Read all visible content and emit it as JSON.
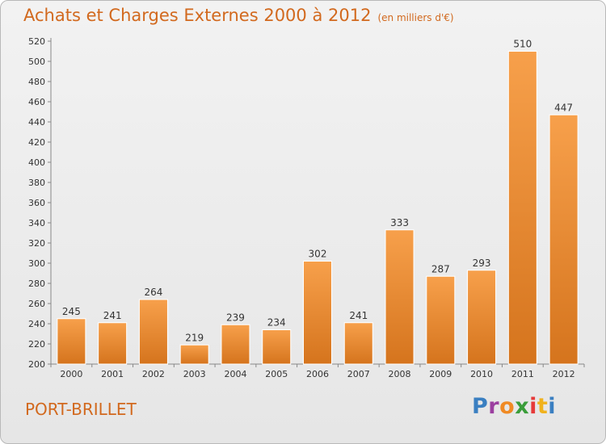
{
  "header": {
    "title": "Achats et Charges Externes 2000 à 2012",
    "unit": "(en milliers d'€)"
  },
  "footer": {
    "city": "PORT-BRILLET",
    "logo": [
      "P",
      "r",
      "o",
      "x",
      "i",
      "t",
      "i"
    ]
  },
  "logo_colors": [
    "#3a7fc1",
    "#9b3fa0",
    "#f08a24",
    "#3a9d3a",
    "#e63a3a",
    "#f0b21e",
    "#3a7fc1"
  ],
  "colors": {
    "bar_light": "#f7a04b",
    "bar_dark": "#d5741d",
    "title": "#d2691e"
  },
  "chart_data": {
    "type": "bar",
    "title": "Achats et Charges Externes 2000 à 2012",
    "subtitle": "(en milliers d'€)",
    "categories": [
      "2000",
      "2001",
      "2002",
      "2003",
      "2004",
      "2005",
      "2006",
      "2007",
      "2008",
      "2009",
      "2010",
      "2011",
      "2012"
    ],
    "values": [
      245,
      241,
      264,
      219,
      239,
      234,
      302,
      241,
      333,
      287,
      293,
      510,
      447
    ],
    "ylim": [
      200,
      520
    ],
    "yticks": [
      200,
      220,
      240,
      260,
      280,
      300,
      320,
      340,
      360,
      380,
      400,
      420,
      440,
      460,
      480,
      500,
      520
    ],
    "grid": false,
    "data_labels": true
  }
}
